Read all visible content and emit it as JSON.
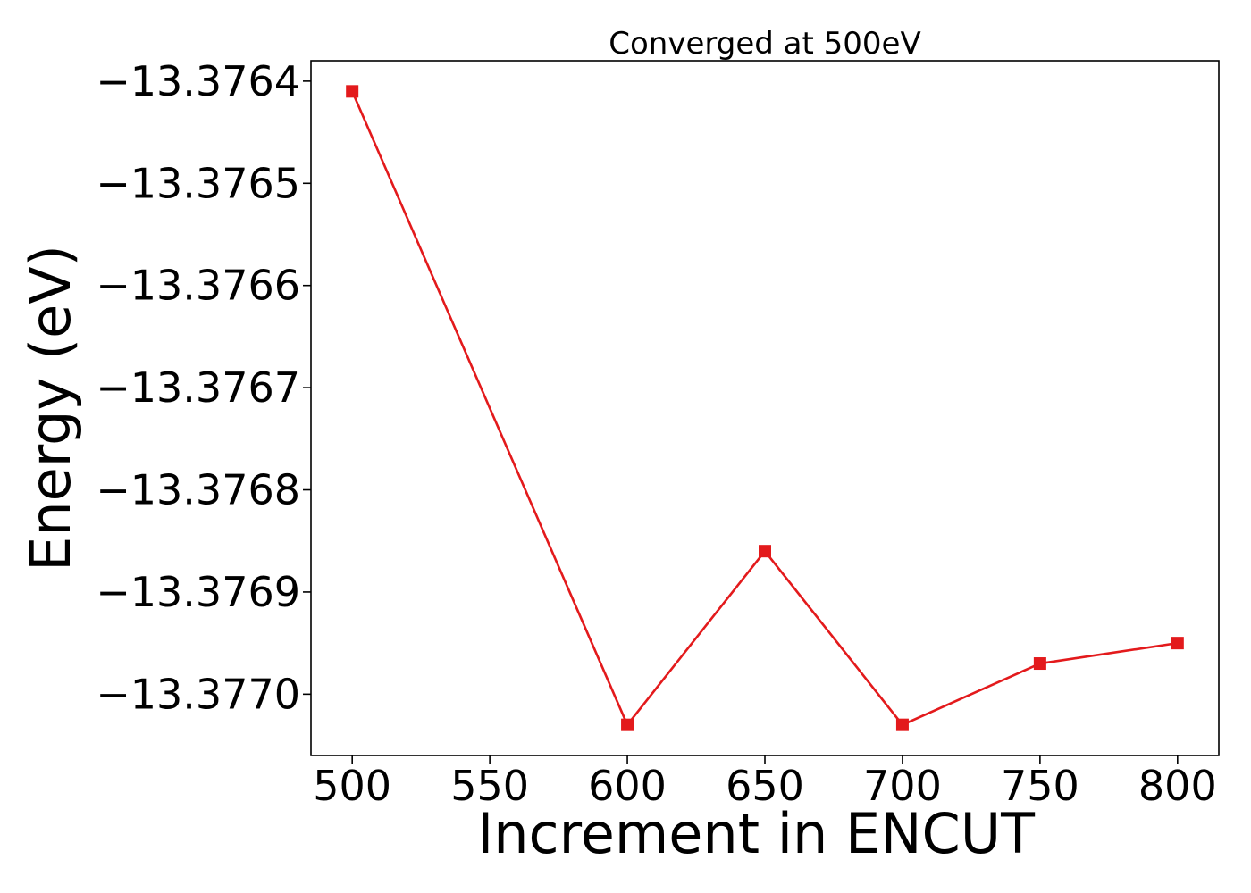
{
  "chart_data": {
    "type": "line",
    "title": "Converged at 500eV",
    "xlabel": "Increment in ENCUT",
    "ylabel": "Energy (eV)",
    "x": [
      500,
      600,
      650,
      700,
      750,
      800
    ],
    "series": [
      {
        "values": [
          -13.37641,
          -13.37703,
          -13.37686,
          -13.37703,
          -13.37697,
          -13.37695
        ],
        "color": "#e31a1c",
        "marker": "square"
      }
    ],
    "xlim": [
      485,
      815
    ],
    "ylim": [
      -13.37706,
      -13.37638
    ],
    "xticks": [
      500,
      550,
      600,
      650,
      700,
      750,
      800
    ],
    "xtick_labels": [
      "500",
      "550",
      "600",
      "650",
      "700",
      "750",
      "800"
    ],
    "yticks": [
      -13.3764,
      -13.3765,
      -13.3766,
      -13.3767,
      -13.3768,
      -13.3769,
      -13.377
    ],
    "ytick_labels": [
      "−13.3764",
      "−13.3765",
      "−13.3766",
      "−13.3767",
      "−13.3768",
      "−13.3769",
      "−13.3770"
    ],
    "grid": false,
    "legend": "none"
  }
}
